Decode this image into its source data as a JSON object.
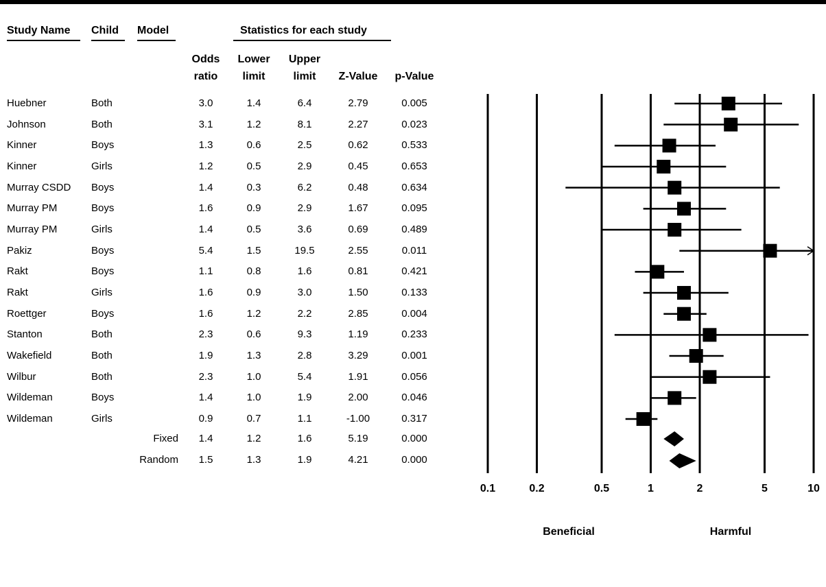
{
  "headers": {
    "study_name": "Study Name",
    "child": "Child",
    "model": "Model",
    "stats_group": "Statistics for each study",
    "odds_1": "Odds",
    "odds_2": "ratio",
    "lower_1": "Lower",
    "lower_2": "limit",
    "upper_1": "Upper",
    "upper_2": "limit",
    "z_value": "Z-Value",
    "p_value": "p-Value"
  },
  "rows": [
    {
      "study": "Huebner",
      "child": "Both",
      "or": "3.0",
      "lower": "1.4",
      "upper": "6.4",
      "z": "2.79",
      "p": "0.005"
    },
    {
      "study": "Johnson",
      "child": "Both",
      "or": "3.1",
      "lower": "1.2",
      "upper": "8.1",
      "z": "2.27",
      "p": "0.023"
    },
    {
      "study": "Kinner",
      "child": "Boys",
      "or": "1.3",
      "lower": "0.6",
      "upper": "2.5",
      "z": "0.62",
      "p": "0.533"
    },
    {
      "study": "Kinner",
      "child": "Girls",
      "or": "1.2",
      "lower": "0.5",
      "upper": "2.9",
      "z": "0.45",
      "p": "0.653"
    },
    {
      "study": "Murray CSDD",
      "child": "Boys",
      "or": "1.4",
      "lower": "0.3",
      "upper": "6.2",
      "z": "0.48",
      "p": "0.634"
    },
    {
      "study": "Murray PM",
      "child": "Boys",
      "or": "1.6",
      "lower": "0.9",
      "upper": "2.9",
      "z": "1.67",
      "p": "0.095"
    },
    {
      "study": "Murray PM",
      "child": "Girls",
      "or": "1.4",
      "lower": "0.5",
      "upper": "3.6",
      "z": "0.69",
      "p": "0.489"
    },
    {
      "study": "Pakiz",
      "child": "Boys",
      "or": "5.4",
      "lower": "1.5",
      "upper": "19.5",
      "z": "2.55",
      "p": "0.011"
    },
    {
      "study": "Rakt",
      "child": "Boys",
      "or": "1.1",
      "lower": "0.8",
      "upper": "1.6",
      "z": "0.81",
      "p": "0.421"
    },
    {
      "study": "Rakt",
      "child": "Girls",
      "or": "1.6",
      "lower": "0.9",
      "upper": "3.0",
      "z": "1.50",
      "p": "0.133"
    },
    {
      "study": "Roettger",
      "child": "Boys",
      "or": "1.6",
      "lower": "1.2",
      "upper": "2.2",
      "z": "2.85",
      "p": "0.004"
    },
    {
      "study": "Stanton",
      "child": "Both",
      "or": "2.3",
      "lower": "0.6",
      "upper": "9.3",
      "z": "1.19",
      "p": "0.233"
    },
    {
      "study": "Wakefield",
      "child": "Both",
      "or": "1.9",
      "lower": "1.3",
      "upper": "2.8",
      "z": "3.29",
      "p": "0.001"
    },
    {
      "study": "Wilbur",
      "child": "Both",
      "or": "2.3",
      "lower": "1.0",
      "upper": "5.4",
      "z": "1.91",
      "p": "0.056"
    },
    {
      "study": "Wildeman",
      "child": "Boys",
      "or": "1.4",
      "lower": "1.0",
      "upper": "1.9",
      "z": "2.00",
      "p": "0.046"
    },
    {
      "study": "Wildeman",
      "child": "Girls",
      "or": "0.9",
      "lower": "0.7",
      "upper": "1.1",
      "z": "-1.00",
      "p": "0.317"
    }
  ],
  "summaries": [
    {
      "model": "Fixed",
      "or": "1.4",
      "lower": "1.2",
      "upper": "1.6",
      "z": "5.19",
      "p": "0.000"
    },
    {
      "model": "Random",
      "or": "1.5",
      "lower": "1.3",
      "upper": "1.9",
      "z": "4.21",
      "p": "0.000"
    }
  ],
  "chart_data": {
    "type": "forest",
    "x_scale": "log",
    "xlim": [
      0.1,
      10
    ],
    "reference_value": 1,
    "x_ticks": [
      "0.1",
      "0.2",
      "0.5",
      "1",
      "2",
      "5",
      "10"
    ],
    "side_labels": {
      "left": "Beneficial",
      "right": "Harmful"
    },
    "studies": [
      {
        "label": "Huebner Both",
        "or": 3.0,
        "lower": 1.4,
        "upper": 6.4
      },
      {
        "label": "Johnson Both",
        "or": 3.1,
        "lower": 1.2,
        "upper": 8.1
      },
      {
        "label": "Kinner Boys",
        "or": 1.3,
        "lower": 0.6,
        "upper": 2.5
      },
      {
        "label": "Kinner Girls",
        "or": 1.2,
        "lower": 0.5,
        "upper": 2.9
      },
      {
        "label": "Murray CSDD Boys",
        "or": 1.4,
        "lower": 0.3,
        "upper": 6.2
      },
      {
        "label": "Murray PM Boys",
        "or": 1.6,
        "lower": 0.9,
        "upper": 2.9
      },
      {
        "label": "Murray PM Girls",
        "or": 1.4,
        "lower": 0.5,
        "upper": 3.6
      },
      {
        "label": "Pakiz Boys",
        "or": 5.4,
        "lower": 1.5,
        "upper": 19.5
      },
      {
        "label": "Rakt Boys",
        "or": 1.1,
        "lower": 0.8,
        "upper": 1.6
      },
      {
        "label": "Rakt Girls",
        "or": 1.6,
        "lower": 0.9,
        "upper": 3.0
      },
      {
        "label": "Roettger Boys",
        "or": 1.6,
        "lower": 1.2,
        "upper": 2.2
      },
      {
        "label": "Stanton Both",
        "or": 2.3,
        "lower": 0.6,
        "upper": 9.3
      },
      {
        "label": "Wakefield Both",
        "or": 1.9,
        "lower": 1.3,
        "upper": 2.8
      },
      {
        "label": "Wilbur Both",
        "or": 2.3,
        "lower": 1.0,
        "upper": 5.4
      },
      {
        "label": "Wildeman Boys",
        "or": 1.4,
        "lower": 1.0,
        "upper": 1.9
      },
      {
        "label": "Wildeman Girls",
        "or": 0.9,
        "lower": 0.7,
        "upper": 1.1
      }
    ],
    "summaries": [
      {
        "label": "Fixed",
        "or": 1.4,
        "lower": 1.2,
        "upper": 1.6
      },
      {
        "label": "Random",
        "or": 1.5,
        "lower": 1.3,
        "upper": 1.9
      }
    ]
  }
}
